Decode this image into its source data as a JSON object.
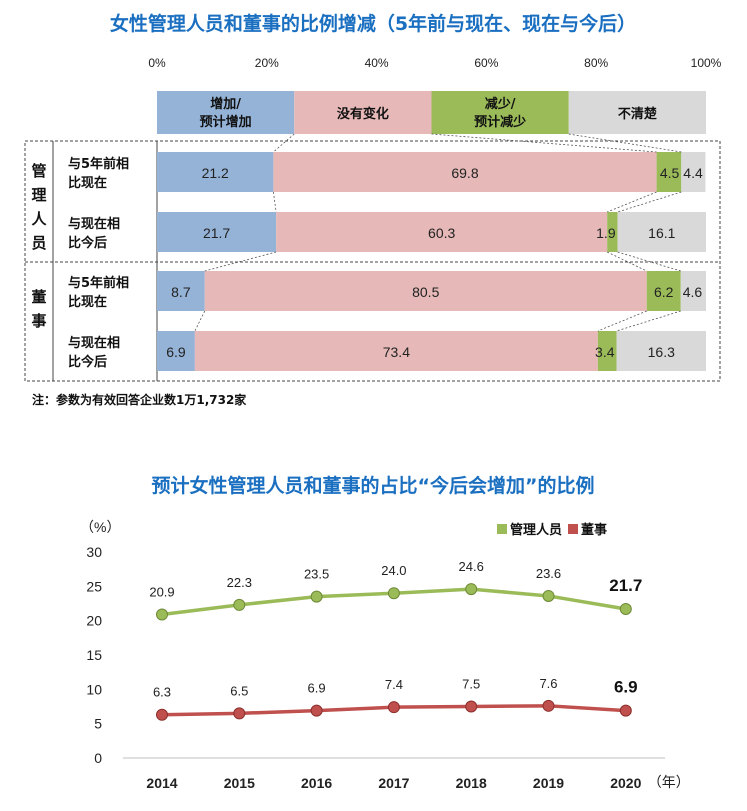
{
  "chart_data": [
    {
      "type": "bar",
      "title": "女性管理人员和董事的比例增减（5年前与现在、现在与今后）",
      "x_ticks": [
        "0%",
        "20%",
        "40%",
        "60%",
        "80%",
        "100%"
      ],
      "legend": [
        {
          "label": "增加/\n预计增加",
          "color": "#95b3d7"
        },
        {
          "label": "没有变化",
          "color": "#e6b9b8"
        },
        {
          "label": "减少/\n预计减少",
          "color": "#9bbb59"
        },
        {
          "label": "不清楚",
          "color": "#d9d9d9"
        }
      ],
      "groups": [
        {
          "name": "管理人员",
          "rows": [
            {
              "label": "与5年前相\n比现在",
              "values": [
                21.2,
                69.8,
                4.5,
                4.4
              ]
            },
            {
              "label": "与现在相\n比今后",
              "values": [
                21.7,
                60.3,
                1.9,
                16.1
              ]
            }
          ]
        },
        {
          "name": "董事",
          "rows": [
            {
              "label": "与5年前相\n比现在",
              "values": [
                8.7,
                80.5,
                6.2,
                4.6
              ]
            },
            {
              "label": "与现在相\n比今后",
              "values": [
                6.9,
                73.4,
                3.4,
                16.3
              ]
            }
          ]
        }
      ],
      "note": "注：参数为有效回答企业数1万1,732家"
    },
    {
      "type": "line",
      "title": "预计女性管理人员和董事的占比“今后会增加”的比例",
      "ylabel": "（%）",
      "xlabel_suffix": "（年）",
      "x": [
        "2014",
        "2015",
        "2016",
        "2017",
        "2018",
        "2019",
        "2020"
      ],
      "y_ticks": [
        0,
        5,
        10,
        15,
        20,
        25,
        30
      ],
      "ylim": [
        0,
        30
      ],
      "series": [
        {
          "name": "管理人员",
          "color": "#9bbb59",
          "values": [
            20.9,
            22.3,
            23.5,
            24.0,
            24.6,
            23.6,
            21.7
          ]
        },
        {
          "name": "董事",
          "color": "#c0504d",
          "values": [
            6.3,
            6.5,
            6.9,
            7.4,
            7.5,
            7.6,
            6.9
          ]
        }
      ]
    }
  ]
}
